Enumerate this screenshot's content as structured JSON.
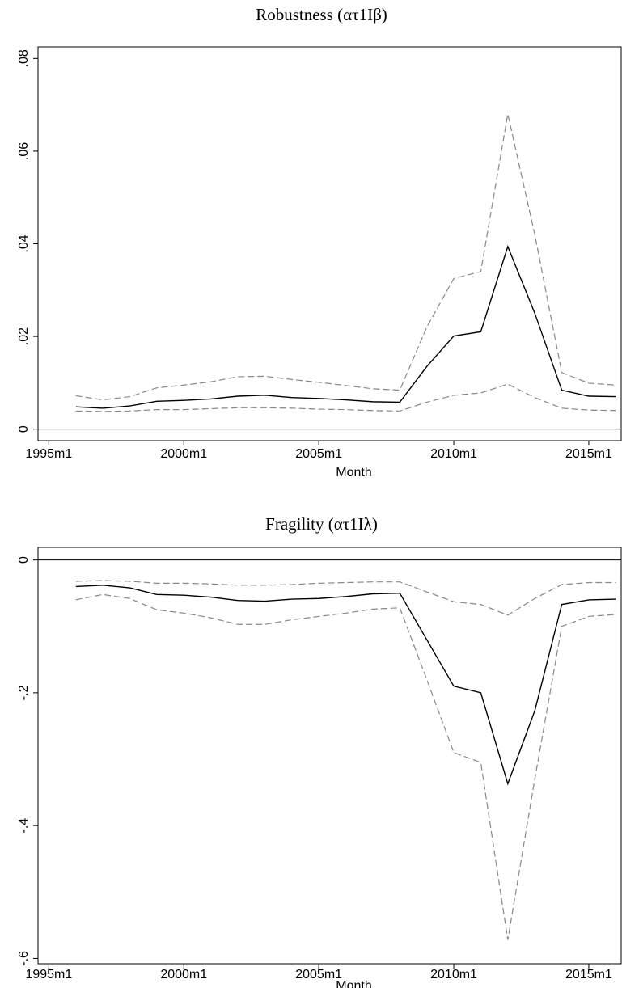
{
  "chart_data": [
    {
      "type": "line",
      "title": "Robustness (ατ1Iβ)",
      "x_label": "Month",
      "x": [
        1996,
        1997,
        1998,
        1999,
        2000,
        2001,
        2002,
        2003,
        2004,
        2005,
        2006,
        2007,
        2008,
        2009,
        2010,
        2011,
        2012,
        2013,
        2014,
        2015,
        2016
      ],
      "series": [
        {
          "color": "#888888",
          "dash": true,
          "values": [
            0.0072,
            0.0063,
            0.007,
            0.0089,
            0.0095,
            0.0102,
            0.0113,
            0.0114,
            0.0107,
            0.0101,
            0.0094,
            0.0087,
            0.0084,
            0.022,
            0.0325,
            0.034,
            0.068,
            0.042,
            0.0122,
            0.0099,
            0.0095
          ]
        },
        {
          "color": "#000000",
          "dash": false,
          "values": [
            0.0048,
            0.0045,
            0.005,
            0.006,
            0.0062,
            0.0065,
            0.0071,
            0.0073,
            0.0068,
            0.0066,
            0.0063,
            0.0059,
            0.0058,
            0.0135,
            0.0201,
            0.021,
            0.0394,
            0.025,
            0.0084,
            0.0071,
            0.007
          ]
        },
        {
          "color": "#888888",
          "dash": true,
          "values": [
            0.0039,
            0.0038,
            0.0039,
            0.0042,
            0.0042,
            0.0044,
            0.0046,
            0.0046,
            0.0045,
            0.0043,
            0.0042,
            0.004,
            0.0039,
            0.0058,
            0.0073,
            0.0078,
            0.0097,
            0.0068,
            0.0045,
            0.0041,
            0.004
          ]
        }
      ],
      "reference_line": 0,
      "xlim": [
        1994.6,
        2016.2
      ],
      "xticks": [
        {
          "value": 1995,
          "label": "1995m1"
        },
        {
          "value": 2000,
          "label": "2000m1"
        },
        {
          "value": 2005,
          "label": "2005m1"
        },
        {
          "value": 2010,
          "label": "2010m1"
        },
        {
          "value": 2015,
          "label": "2015m1"
        }
      ],
      "ylim": [
        -0.0025,
        0.0825
      ],
      "yticks": [
        0,
        {
          "value": 0.02,
          "label": ".02"
        },
        {
          "value": 0.04,
          "label": ".04"
        },
        {
          "value": 0.06,
          "label": ".06"
        },
        {
          "value": 0.08,
          "label": ".08"
        }
      ]
    },
    {
      "type": "line",
      "title": "Fragility (ατ1Iλ)",
      "x_label": "Month",
      "x": [
        1996,
        1997,
        1998,
        1999,
        2000,
        2001,
        2002,
        2003,
        2004,
        2005,
        2006,
        2007,
        2008,
        2009,
        2010,
        2011,
        2012,
        2013,
        2014,
        2015,
        2016
      ],
      "series": [
        {
          "color": "#888888",
          "dash": true,
          "values": [
            -0.032,
            -0.031,
            -0.032,
            -0.035,
            -0.035,
            -0.036,
            -0.038,
            -0.038,
            -0.037,
            -0.035,
            -0.034,
            -0.033,
            -0.033,
            -0.048,
            -0.063,
            -0.067,
            -0.083,
            -0.058,
            -0.037,
            -0.034,
            -0.034
          ]
        },
        {
          "color": "#000000",
          "dash": false,
          "values": [
            -0.04,
            -0.038,
            -0.042,
            -0.052,
            -0.053,
            -0.056,
            -0.061,
            -0.062,
            -0.059,
            -0.058,
            -0.055,
            -0.051,
            -0.05,
            -0.12,
            -0.19,
            -0.2,
            -0.337,
            -0.227,
            -0.067,
            -0.06,
            -0.059
          ]
        },
        {
          "color": "#888888",
          "dash": true,
          "values": [
            -0.06,
            -0.052,
            -0.058,
            -0.075,
            -0.08,
            -0.087,
            -0.097,
            -0.097,
            -0.09,
            -0.085,
            -0.08,
            -0.074,
            -0.072,
            -0.18,
            -0.29,
            -0.305,
            -0.572,
            -0.33,
            -0.1,
            -0.085,
            -0.082
          ]
        }
      ],
      "reference_line": 0,
      "xlim": [
        1994.6,
        2016.2
      ],
      "xticks": [
        {
          "value": 1995,
          "label": "1995m1"
        },
        {
          "value": 2000,
          "label": "2000m1"
        },
        {
          "value": 2005,
          "label": "2005m1"
        },
        {
          "value": 2010,
          "label": "2010m1"
        },
        {
          "value": 2015,
          "label": "2015m1"
        }
      ],
      "ylim": [
        -0.608,
        0.019
      ],
      "yticks": [
        0,
        {
          "value": -0.2,
          "label": "-.2"
        },
        {
          "value": -0.4,
          "label": "-.4"
        },
        {
          "value": -0.6,
          "label": "-.6"
        }
      ]
    }
  ]
}
